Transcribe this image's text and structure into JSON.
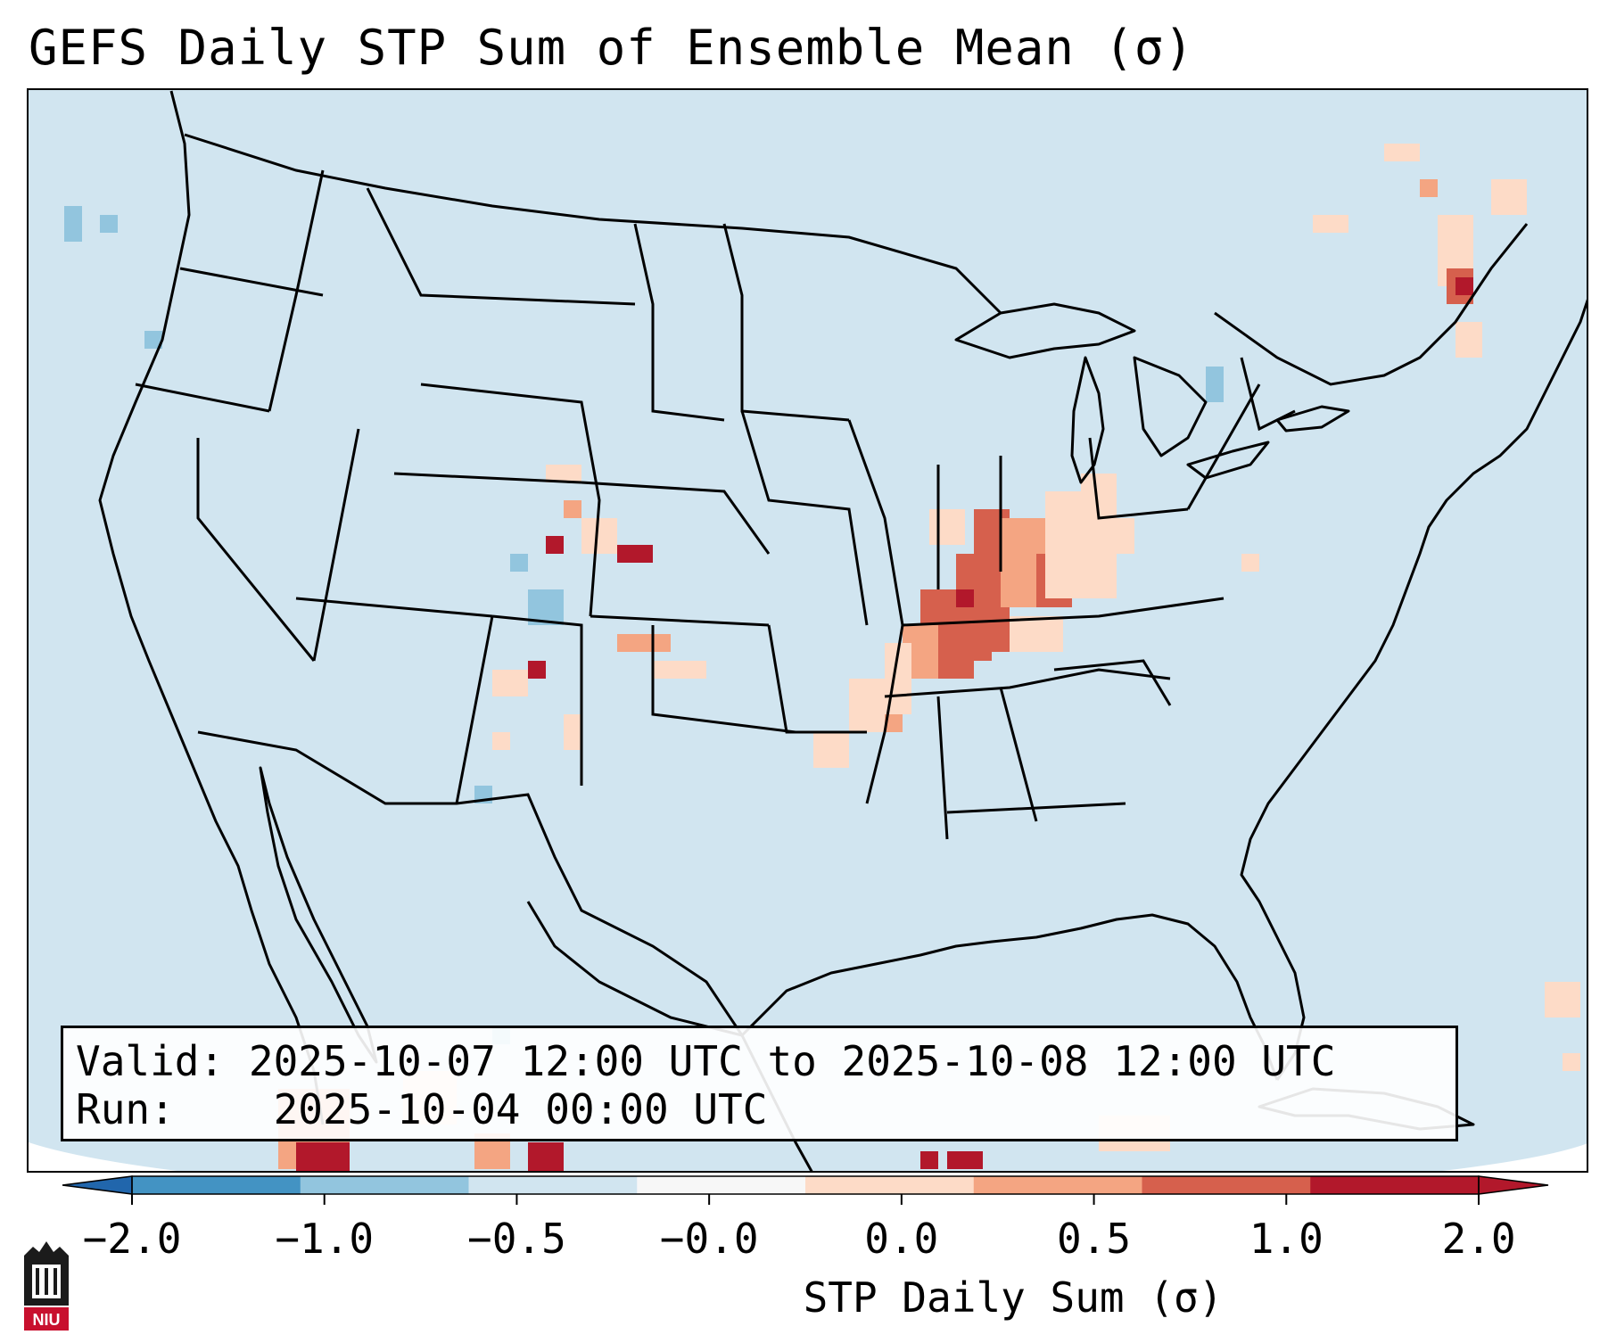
{
  "title": "GEFS Daily STP Sum of Ensemble Mean (σ)",
  "info": {
    "valid_label": "Valid:",
    "valid_text": "2025-10-07 12:00 UTC to 2025-10-08 12:00 UTC",
    "run_label": "Run:",
    "run_text": "2025-10-04 00:00 UTC"
  },
  "colorbar": {
    "label": "STP Daily Sum (σ)",
    "ticks": [
      "−2.0",
      "−1.0",
      "−0.5",
      "−0.0",
      "0.0",
      "0.5",
      "1.0",
      "2.0"
    ],
    "colors": [
      "#4393c3",
      "#92c5de",
      "#d1e5f0",
      "#f7f7f7",
      "#fddbc7",
      "#f4a582",
      "#d6604d",
      "#b2182b"
    ],
    "extend_low_color": "#2166ac",
    "extend_high_color": "#b2182b"
  },
  "map": {
    "ocean_color": "#d1e5f0",
    "coast_color": "#000000"
  },
  "logo": {
    "text": "NIU"
  }
}
